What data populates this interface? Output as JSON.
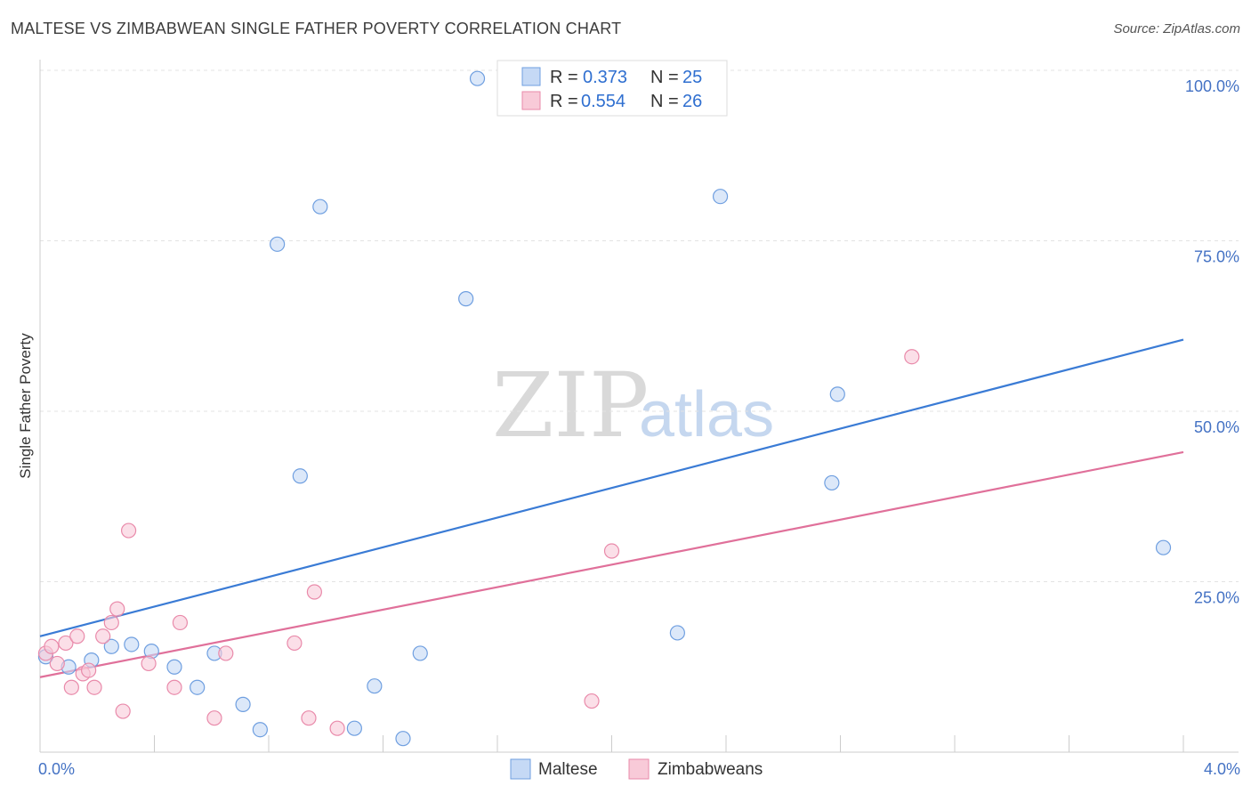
{
  "header": {
    "title": "MALTESE VS ZIMBABWEAN SINGLE FATHER POVERTY CORRELATION CHART",
    "source": "Source: ZipAtlas.com"
  },
  "watermark": {
    "zip": "ZIP",
    "atlas": "atlas"
  },
  "chart_data": {
    "type": "scatter",
    "title": "MALTESE VS ZIMBABWEAN SINGLE FATHER POVERTY CORRELATION CHART",
    "xlabel": "",
    "ylabel": "Single Father Poverty",
    "xlim": [
      0,
      4
    ],
    "ylim": [
      0,
      100
    ],
    "x_tick_labels": {
      "min": "0.0%",
      "max": "4.0%"
    },
    "y_ticks": [
      25,
      50,
      75,
      100
    ],
    "y_tick_labels": [
      "25.0%",
      "50.0%",
      "75.0%",
      "100.0%"
    ],
    "grid": true,
    "legend": {
      "position": "top-center",
      "entries": [
        {
          "name": "Maltese",
          "r_label": "R =",
          "r": "0.373",
          "n_label": "N =",
          "n": "25"
        },
        {
          "name": "Zimbabweans",
          "r_label": "R =",
          "r": "0.554",
          "n_label": "N =",
          "n": "26"
        }
      ]
    },
    "series": [
      {
        "name": "Maltese",
        "color": "#6f9fe0",
        "fill": "#c5d9f5",
        "line_color": "#3a7bd5",
        "trend": {
          "x0": 0.0,
          "y0": 17.0,
          "x1": 4.0,
          "y1": 60.5
        },
        "points": [
          [
            0.02,
            14.0
          ],
          [
            0.1,
            12.5
          ],
          [
            0.18,
            13.5
          ],
          [
            0.25,
            15.5
          ],
          [
            0.32,
            15.8
          ],
          [
            0.39,
            14.8
          ],
          [
            0.47,
            12.5
          ],
          [
            0.55,
            9.5
          ],
          [
            0.61,
            14.5
          ],
          [
            0.71,
            7.0
          ],
          [
            0.77,
            3.3
          ],
          [
            0.83,
            74.5
          ],
          [
            0.91,
            40.5
          ],
          [
            0.98,
            80.0
          ],
          [
            1.1,
            3.5
          ],
          [
            1.17,
            9.7
          ],
          [
            1.27,
            2.0
          ],
          [
            1.33,
            14.5
          ],
          [
            1.49,
            66.5
          ],
          [
            1.53,
            98.8
          ],
          [
            2.23,
            17.5
          ],
          [
            2.38,
            81.5
          ],
          [
            2.77,
            39.5
          ],
          [
            2.79,
            52.5
          ],
          [
            3.93,
            30.0
          ]
        ]
      },
      {
        "name": "Zimbabweans",
        "color": "#e98aaa",
        "fill": "#f8cad8",
        "line_color": "#e0709a",
        "trend": {
          "x0": 0.0,
          "y0": 11.0,
          "x1": 4.0,
          "y1": 44.0
        },
        "points": [
          [
            0.02,
            14.5
          ],
          [
            0.04,
            15.5
          ],
          [
            0.06,
            13.0
          ],
          [
            0.09,
            16.0
          ],
          [
            0.11,
            9.5
          ],
          [
            0.13,
            17.0
          ],
          [
            0.15,
            11.5
          ],
          [
            0.17,
            12.0
          ],
          [
            0.19,
            9.5
          ],
          [
            0.22,
            17.0
          ],
          [
            0.25,
            19.0
          ],
          [
            0.27,
            21.0
          ],
          [
            0.29,
            6.0
          ],
          [
            0.31,
            32.5
          ],
          [
            0.38,
            13.0
          ],
          [
            0.47,
            9.5
          ],
          [
            0.49,
            19.0
          ],
          [
            0.61,
            5.0
          ],
          [
            0.65,
            14.5
          ],
          [
            0.89,
            16.0
          ],
          [
            0.94,
            5.0
          ],
          [
            0.96,
            23.5
          ],
          [
            1.04,
            3.5
          ],
          [
            1.93,
            7.5
          ],
          [
            2.0,
            29.5
          ],
          [
            3.05,
            58.0
          ]
        ]
      }
    ]
  }
}
